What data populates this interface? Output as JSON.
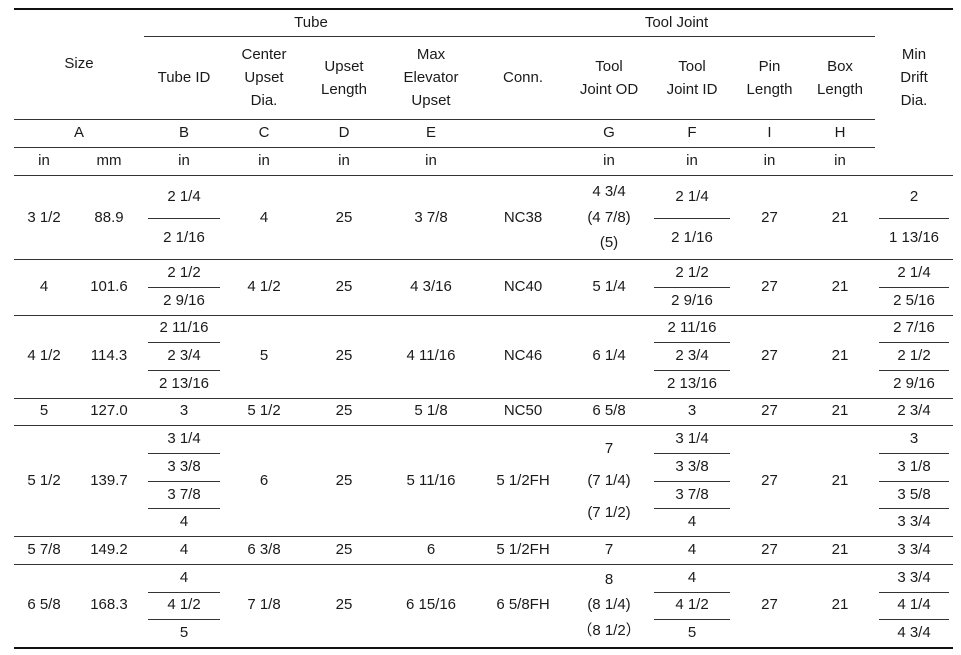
{
  "header": {
    "size": "Size",
    "tube_group": "Tube",
    "tool_joint_group": "Tool Joint",
    "tube_id": "Tube ID",
    "center_upset": [
      "Center",
      "Upset",
      "Dia."
    ],
    "upset_length": [
      "Upset",
      "Length"
    ],
    "max_elevator": [
      "Max",
      "Elevator",
      "Upset"
    ],
    "conn": "Conn.",
    "tool_joint_od": [
      "Tool",
      "Joint OD"
    ],
    "tool_joint_id": [
      "Tool",
      "Joint ID"
    ],
    "pin_length": [
      "Pin",
      "Length"
    ],
    "box_length": [
      "Box",
      "Length"
    ],
    "min_drift": [
      "Min",
      "Drift",
      "Dia."
    ]
  },
  "letters": {
    "size": "A",
    "tube_id": "B",
    "center": "C",
    "upset_len": "D",
    "max_elev": "E",
    "tj_od": "G",
    "tj_id": "F",
    "pin": "I",
    "box": "H"
  },
  "units": {
    "size_in": "in",
    "size_mm": "mm",
    "tube_id": "in",
    "center": "in",
    "upset_len": "in",
    "max_elev": "in",
    "tj_od": "in",
    "tj_id": "in",
    "pin": "in",
    "box": "in"
  },
  "rows": [
    {
      "size_in": "3 1/2",
      "size_mm": "88.9",
      "tube_id": [
        "2 1/4",
        "2 1/16"
      ],
      "center": "4",
      "upset_len": "25",
      "max_elev": "3 7/8",
      "conn": "NC38",
      "tj_od": [
        "4 3/4",
        "(4 7/8)",
        "(5)"
      ],
      "tj_id": [
        "2 1/4",
        "2 1/16"
      ],
      "pin": "27",
      "box": "21",
      "drift": [
        "2",
        "1 13/16"
      ]
    },
    {
      "size_in": "4",
      "size_mm": "101.6",
      "tube_id": [
        "2 1/2",
        "2 9/16"
      ],
      "center": "4 1/2",
      "upset_len": "25",
      "max_elev": "4 3/16",
      "conn": "NC40",
      "tj_od": [
        "5 1/4"
      ],
      "tj_id": [
        "2 1/2",
        "2 9/16"
      ],
      "pin": "27",
      "box": "21",
      "drift": [
        "2 1/4",
        "2 5/16"
      ]
    },
    {
      "size_in": "4 1/2",
      "size_mm": "114.3",
      "tube_id": [
        "2 11/16",
        "2 3/4",
        "2 13/16"
      ],
      "center": "5",
      "upset_len": "25",
      "max_elev": "4 11/16",
      "conn": "NC46",
      "tj_od": [
        "6 1/4"
      ],
      "tj_id": [
        "2 11/16",
        "2 3/4",
        "2 13/16"
      ],
      "pin": "27",
      "box": "21",
      "drift": [
        "2 7/16",
        "2 1/2",
        "2 9/16"
      ]
    },
    {
      "size_in": "5",
      "size_mm": "127.0",
      "tube_id": [
        "3"
      ],
      "center": "5 1/2",
      "upset_len": "25",
      "max_elev": "5 1/8",
      "conn": "NC50",
      "tj_od": [
        "6 5/8"
      ],
      "tj_id": [
        "3"
      ],
      "pin": "27",
      "box": "21",
      "drift": [
        "2 3/4"
      ]
    },
    {
      "size_in": "5 1/2",
      "size_mm": "139.7",
      "tube_id": [
        "3 1/4",
        "3 3/8",
        "3 7/8",
        "4"
      ],
      "center": "6",
      "upset_len": "25",
      "max_elev": "5 11/16",
      "conn": "5 1/2FH",
      "tj_od": [
        "7",
        "(7 1/4)",
        "(7 1/2)"
      ],
      "tj_id": [
        "3 1/4",
        "3 3/8",
        "3 7/8",
        "4"
      ],
      "pin": "27",
      "box": "21",
      "drift": [
        "3",
        "3 1/8",
        "3 5/8",
        "3 3/4"
      ]
    },
    {
      "size_in": "5 7/8",
      "size_mm": "149.2",
      "tube_id": [
        "4"
      ],
      "center": "6 3/8",
      "upset_len": "25",
      "max_elev": "6",
      "conn": "5 1/2FH",
      "tj_od": [
        "7"
      ],
      "tj_id": [
        "4"
      ],
      "pin": "27",
      "box": "21",
      "drift": [
        "3 3/4"
      ]
    },
    {
      "size_in": "6 5/8",
      "size_mm": "168.3",
      "tube_id": [
        "4",
        "4 1/2",
        "5"
      ],
      "center": "7 1/8",
      "upset_len": "25",
      "max_elev": "6 15/16",
      "conn": "6 5/8FH",
      "tj_od": [
        "8",
        "(8 1/4)",
        "（8 1/2）"
      ],
      "tj_id": [
        "4",
        "4 1/2",
        "5"
      ],
      "pin": "27",
      "box": "21",
      "drift": [
        "3 3/4",
        "4 1/4",
        "4 3/4"
      ]
    }
  ]
}
